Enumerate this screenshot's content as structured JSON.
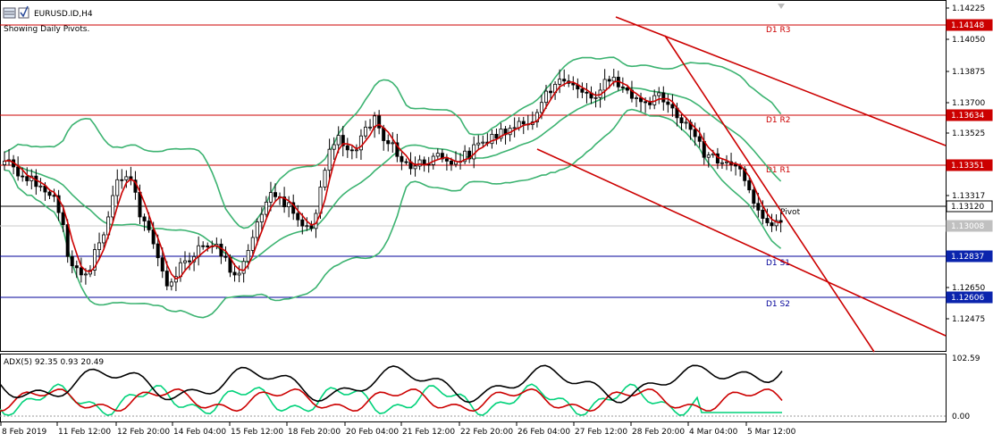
{
  "window": {
    "symbol_title": "EURUSD.ID,H4",
    "subtitle": "Showing Daily Pivots."
  },
  "colors": {
    "background": "#ffffff",
    "candle": "#000000",
    "ma": "#cc0000",
    "bollinger": "#3cb371",
    "resistance": "#cc0000",
    "support": "#000099",
    "pivot": "#000000",
    "adx_main": "#000000",
    "adx_plus": "#00d27a",
    "adx_minus": "#cc0000",
    "price_tag_red": "#cc0000",
    "price_tag_blue": "#0b24ad"
  },
  "icons": [
    "chart-window-icon",
    "checkbox-icon"
  ],
  "main_chart": {
    "y_axis_ticks": [
      "1.14225",
      "1.14050",
      "1.13875",
      "1.13700",
      "1.13525",
      "1.13317",
      "1.12650",
      "1.12475"
    ],
    "price_tags": [
      {
        "text": "1.14148",
        "color": "#cc0000"
      },
      {
        "text": "1.13634",
        "color": "#cc0000"
      },
      {
        "text": "1.13351",
        "color": "#cc0000"
      },
      {
        "text": "1.13120",
        "color": "#000000"
      },
      {
        "text": "1.13008",
        "color": "#c0c0c0"
      },
      {
        "text": "1.12837",
        "color": "#0b24ad"
      },
      {
        "text": "1.12606",
        "color": "#0b24ad"
      }
    ],
    "pivot_labels": [
      "D1 R3",
      "D1 R2",
      "D1 R1",
      "Pivot",
      "D1 S1",
      "D1 S2"
    ]
  },
  "indicator": {
    "label": "ADX(5) 92.35 0.93 20.49",
    "adx": 92.35,
    "plus_di": 0.93,
    "minus_di": 20.49,
    "axis_top": "102.59",
    "axis_bottom": "0.00"
  },
  "x_axis": {
    "labels": [
      "8 Feb 2019",
      "11 Feb 12:00",
      "12 Feb 20:00",
      "14 Feb 04:00",
      "15 Feb 12:00",
      "18 Feb 20:00",
      "20 Feb 04:00",
      "21 Feb 12:00",
      "22 Feb 20:00",
      "26 Feb 04:00",
      "27 Feb 12:00",
      "28 Feb 20:00",
      "4 Mar 04:00",
      "5 Mar 12:00"
    ]
  }
}
